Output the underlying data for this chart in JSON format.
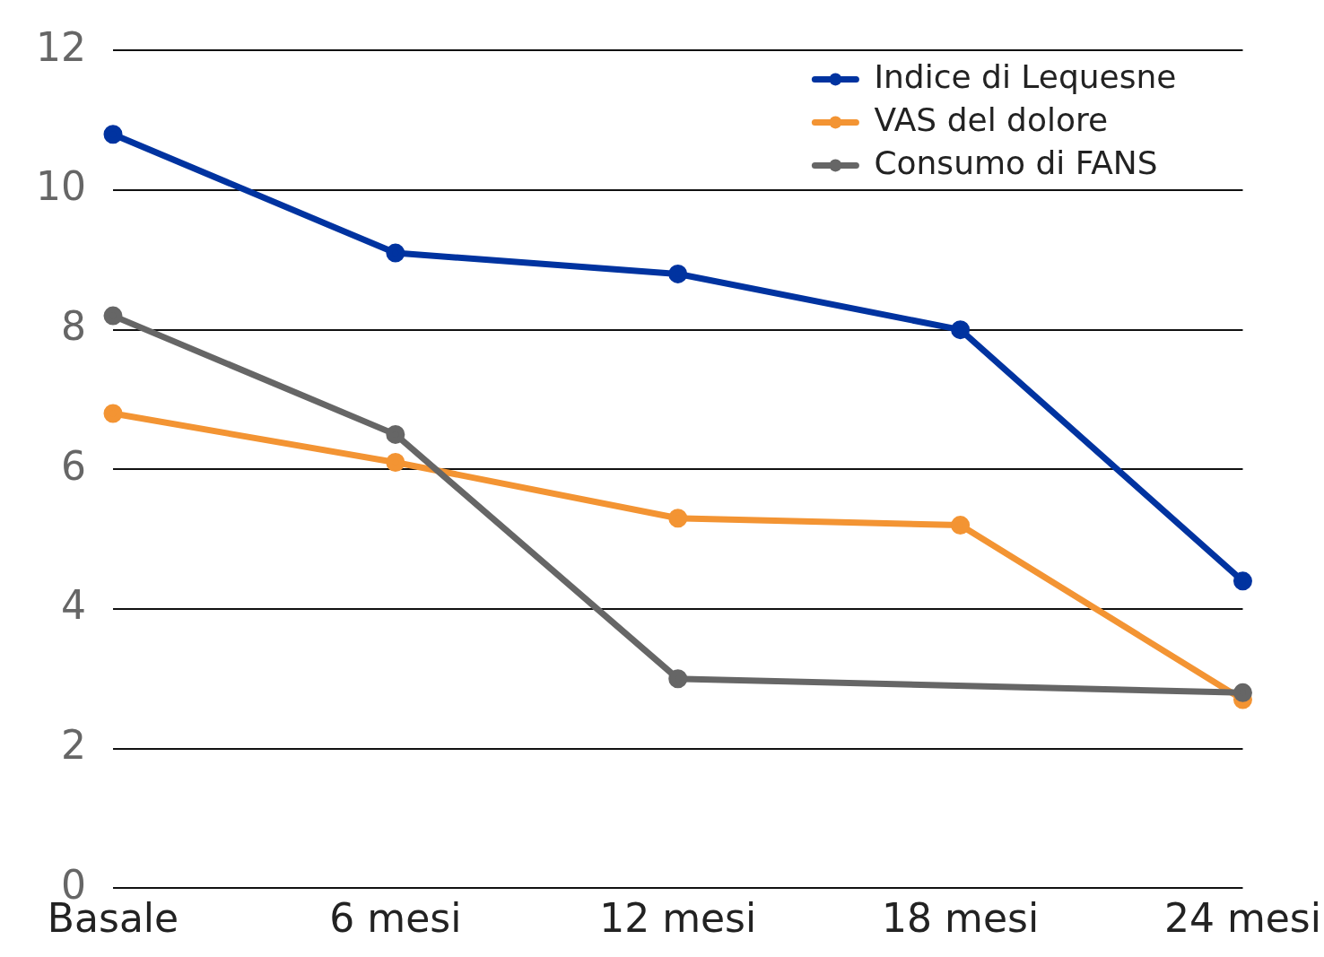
{
  "chart_data": {
    "type": "line",
    "categories": [
      "Basale",
      "6 mesi",
      "12 mesi",
      "18 mesi",
      "24 mesi"
    ],
    "series": [
      {
        "name": "Indice di Lequesne",
        "color": "#0033a0",
        "values": [
          10.8,
          9.1,
          8.8,
          8.0,
          4.4
        ]
      },
      {
        "name": "VAS del dolore",
        "color": "#f39433",
        "values": [
          6.8,
          6.1,
          5.3,
          5.2,
          2.7
        ]
      },
      {
        "name": "Consumo di FANS",
        "color": "#666666",
        "values": [
          8.2,
          6.5,
          3.0,
          null,
          2.8
        ]
      }
    ],
    "ylim": [
      0,
      12
    ],
    "yticks": [
      0,
      2,
      4,
      6,
      8,
      10,
      12
    ],
    "grid": "y",
    "legend": "top right",
    "marker": "circle",
    "line_style": "solid"
  }
}
